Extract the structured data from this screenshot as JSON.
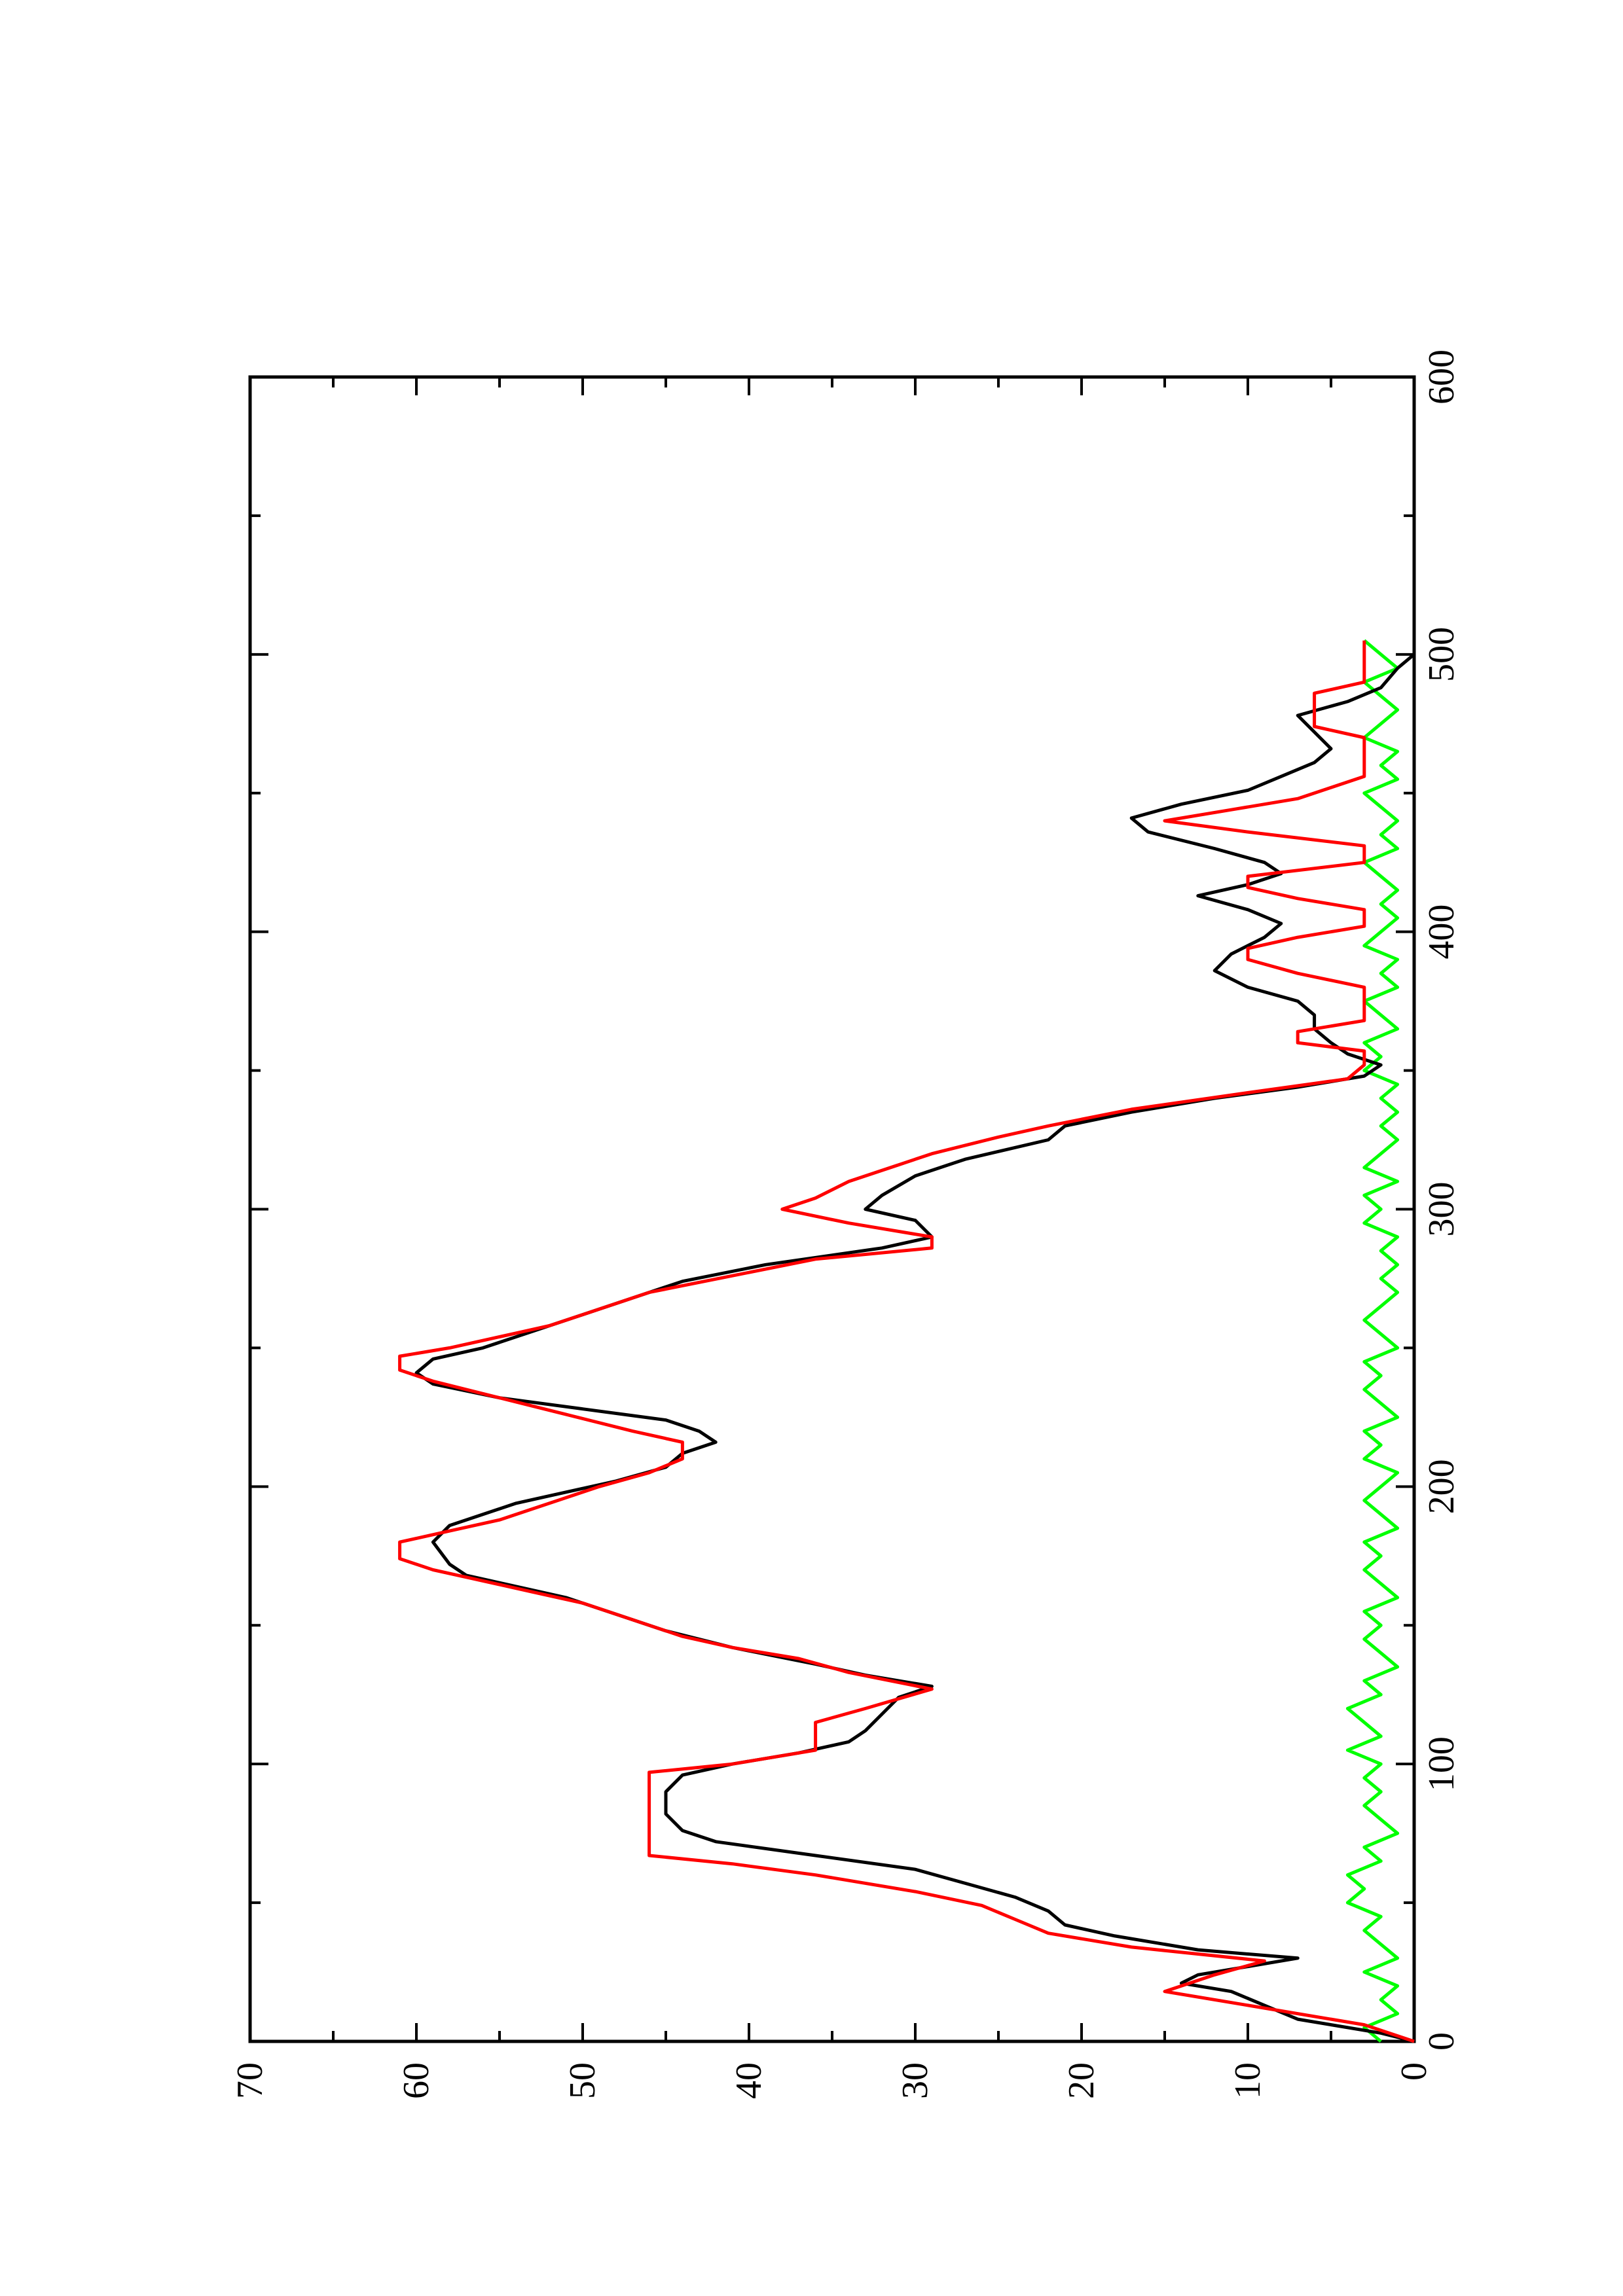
{
  "chart_data": {
    "type": "line",
    "orientation": "rotated-90-ccw",
    "title": "",
    "xlabel": "",
    "ylabel": "",
    "xlim": [
      0,
      600
    ],
    "ylim": [
      0,
      70
    ],
    "x_ticks": [
      0,
      100,
      200,
      300,
      400,
      500,
      600
    ],
    "y_ticks": [
      0,
      10,
      20,
      30,
      40,
      50,
      60,
      70
    ],
    "x_tick_labels": [
      "0",
      "100",
      "200",
      "300",
      "400",
      "500",
      "600"
    ],
    "y_tick_labels": [
      "0",
      "10",
      "20",
      "30",
      "40",
      "50",
      "60",
      "70"
    ],
    "grid": false,
    "legend": "none",
    "series": [
      {
        "color": "#000000",
        "points": [
          [
            0,
            0
          ],
          [
            3,
            2
          ],
          [
            8,
            7
          ],
          [
            13,
            9
          ],
          [
            18,
            11
          ],
          [
            21,
            14
          ],
          [
            24,
            13
          ],
          [
            27,
            10
          ],
          [
            30,
            7
          ],
          [
            33,
            13
          ],
          [
            38,
            18
          ],
          [
            42,
            21
          ],
          [
            47,
            22
          ],
          [
            52,
            24
          ],
          [
            57,
            27
          ],
          [
            62,
            30
          ],
          [
            67,
            36
          ],
          [
            72,
            42
          ],
          [
            76,
            44
          ],
          [
            82,
            45
          ],
          [
            90,
            45
          ],
          [
            96,
            44
          ],
          [
            100,
            41
          ],
          [
            104,
            37
          ],
          [
            108,
            34
          ],
          [
            112,
            33
          ],
          [
            118,
            32
          ],
          [
            124,
            31
          ],
          [
            128,
            29
          ],
          [
            132,
            33
          ],
          [
            136,
            36
          ],
          [
            142,
            41
          ],
          [
            148,
            45
          ],
          [
            154,
            48
          ],
          [
            160,
            51
          ],
          [
            164,
            54
          ],
          [
            168,
            57
          ],
          [
            172,
            58
          ],
          [
            180,
            59
          ],
          [
            186,
            58
          ],
          [
            190,
            56
          ],
          [
            194,
            54
          ],
          [
            198,
            51
          ],
          [
            202,
            48
          ],
          [
            207,
            45
          ],
          [
            212,
            44
          ],
          [
            216,
            42
          ],
          [
            220,
            43
          ],
          [
            224,
            45
          ],
          [
            228,
            50
          ],
          [
            232,
            55
          ],
          [
            237,
            59
          ],
          [
            241,
            60
          ],
          [
            246,
            59
          ],
          [
            250,
            56
          ],
          [
            256,
            53
          ],
          [
            262,
            50
          ],
          [
            268,
            47
          ],
          [
            274,
            44
          ],
          [
            280,
            39
          ],
          [
            286,
            32
          ],
          [
            290,
            29
          ],
          [
            296,
            30
          ],
          [
            300,
            33
          ],
          [
            305,
            32
          ],
          [
            312,
            30
          ],
          [
            318,
            27
          ],
          [
            325,
            22
          ],
          [
            330,
            21
          ],
          [
            335,
            17
          ],
          [
            340,
            12
          ],
          [
            344,
            7
          ],
          [
            348,
            3
          ],
          [
            352,
            2
          ],
          [
            356,
            4
          ],
          [
            360,
            5
          ],
          [
            365,
            6
          ],
          [
            370,
            6
          ],
          [
            375,
            7
          ],
          [
            380,
            10
          ],
          [
            386,
            12
          ],
          [
            392,
            11
          ],
          [
            398,
            9
          ],
          [
            403,
            8
          ],
          [
            408,
            10
          ],
          [
            413,
            13
          ],
          [
            417,
            10
          ],
          [
            421,
            8
          ],
          [
            425,
            9
          ],
          [
            430,
            12
          ],
          [
            436,
            16
          ],
          [
            441,
            17
          ],
          [
            446,
            14
          ],
          [
            451,
            10
          ],
          [
            456,
            8
          ],
          [
            461,
            6
          ],
          [
            466,
            5
          ],
          [
            472,
            6
          ],
          [
            478,
            7
          ],
          [
            483,
            4
          ],
          [
            488,
            2
          ],
          [
            495,
            1
          ],
          [
            500,
            0
          ],
          [
            505,
            0
          ]
        ]
      },
      {
        "color": "#ff0000",
        "points": [
          [
            0,
            0
          ],
          [
            6,
            3
          ],
          [
            12,
            9
          ],
          [
            18,
            15
          ],
          [
            24,
            12
          ],
          [
            29,
            9
          ],
          [
            34,
            17
          ],
          [
            39,
            22
          ],
          [
            44,
            24
          ],
          [
            49,
            26
          ],
          [
            54,
            30
          ],
          [
            60,
            36
          ],
          [
            64,
            41
          ],
          [
            67,
            46
          ],
          [
            97,
            46
          ],
          [
            100,
            41
          ],
          [
            105,
            36
          ],
          [
            115,
            36
          ],
          [
            120,
            33
          ],
          [
            127,
            29
          ],
          [
            133,
            34
          ],
          [
            138,
            37
          ],
          [
            142,
            41
          ],
          [
            146,
            44
          ],
          [
            150,
            46
          ],
          [
            154,
            48
          ],
          [
            158,
            50
          ],
          [
            162,
            53
          ],
          [
            166,
            56
          ],
          [
            170,
            59
          ],
          [
            174,
            61
          ],
          [
            180,
            61
          ],
          [
            184,
            58
          ],
          [
            188,
            55
          ],
          [
            192,
            53
          ],
          [
            196,
            51
          ],
          [
            200,
            49
          ],
          [
            205,
            46
          ],
          [
            210,
            44
          ],
          [
            216,
            44
          ],
          [
            220,
            47
          ],
          [
            226,
            51
          ],
          [
            232,
            55
          ],
          [
            238,
            59
          ],
          [
            242,
            61
          ],
          [
            247,
            61
          ],
          [
            250,
            58
          ],
          [
            254,
            55
          ],
          [
            258,
            52
          ],
          [
            262,
            50
          ],
          [
            266,
            48
          ],
          [
            270,
            46
          ],
          [
            276,
            41
          ],
          [
            282,
            36
          ],
          [
            286,
            29
          ],
          [
            290,
            29
          ],
          [
            295,
            34
          ],
          [
            300,
            38
          ],
          [
            304,
            36
          ],
          [
            310,
            34
          ],
          [
            316,
            31
          ],
          [
            320,
            29
          ],
          [
            326,
            25
          ],
          [
            330,
            22
          ],
          [
            336,
            17
          ],
          [
            342,
            10
          ],
          [
            347,
            4
          ],
          [
            352,
            3
          ],
          [
            357,
            3
          ],
          [
            360,
            7
          ],
          [
            364,
            7
          ],
          [
            368,
            3
          ],
          [
            380,
            3
          ],
          [
            385,
            7
          ],
          [
            390,
            10
          ],
          [
            394,
            10
          ],
          [
            398,
            7
          ],
          [
            402,
            3
          ],
          [
            408,
            3
          ],
          [
            412,
            7
          ],
          [
            416,
            10
          ],
          [
            420,
            10
          ],
          [
            425,
            3
          ],
          [
            431,
            3
          ],
          [
            436,
            10
          ],
          [
            440,
            15
          ],
          [
            444,
            11
          ],
          [
            448,
            7
          ],
          [
            452,
            5
          ],
          [
            456,
            3
          ],
          [
            470,
            3
          ],
          [
            474,
            6
          ],
          [
            478,
            6
          ],
          [
            486,
            6
          ],
          [
            490,
            3
          ],
          [
            505,
            3
          ]
        ]
      },
      {
        "color": "#00ff00",
        "points": [
          [
            0,
            2
          ],
          [
            5,
            3
          ],
          [
            10,
            1
          ],
          [
            15,
            2
          ],
          [
            20,
            1
          ],
          [
            25,
            3
          ],
          [
            30,
            1
          ],
          [
            35,
            2
          ],
          [
            40,
            3
          ],
          [
            45,
            2
          ],
          [
            50,
            4
          ],
          [
            55,
            3
          ],
          [
            60,
            4
          ],
          [
            65,
            2
          ],
          [
            70,
            3
          ],
          [
            75,
            1
          ],
          [
            80,
            2
          ],
          [
            85,
            3
          ],
          [
            90,
            2
          ],
          [
            95,
            3
          ],
          [
            100,
            2
          ],
          [
            105,
            4
          ],
          [
            110,
            2
          ],
          [
            115,
            3
          ],
          [
            120,
            4
          ],
          [
            125,
            2
          ],
          [
            130,
            3
          ],
          [
            135,
            1
          ],
          [
            140,
            2
          ],
          [
            145,
            3
          ],
          [
            150,
            2
          ],
          [
            155,
            3
          ],
          [
            160,
            1
          ],
          [
            165,
            2
          ],
          [
            170,
            3
          ],
          [
            175,
            2
          ],
          [
            180,
            3
          ],
          [
            185,
            1
          ],
          [
            190,
            2
          ],
          [
            195,
            3
          ],
          [
            200,
            2
          ],
          [
            205,
            1
          ],
          [
            210,
            3
          ],
          [
            215,
            2
          ],
          [
            220,
            3
          ],
          [
            225,
            1
          ],
          [
            230,
            2
          ],
          [
            235,
            3
          ],
          [
            240,
            2
          ],
          [
            245,
            3
          ],
          [
            250,
            1
          ],
          [
            255,
            2
          ],
          [
            260,
            3
          ],
          [
            265,
            2
          ],
          [
            270,
            1
          ],
          [
            275,
            2
          ],
          [
            280,
            1
          ],
          [
            285,
            2
          ],
          [
            290,
            1
          ],
          [
            295,
            3
          ],
          [
            300,
            2
          ],
          [
            305,
            3
          ],
          [
            310,
            1
          ],
          [
            315,
            3
          ],
          [
            320,
            2
          ],
          [
            325,
            1
          ],
          [
            330,
            2
          ],
          [
            335,
            1
          ],
          [
            340,
            2
          ],
          [
            345,
            1
          ],
          [
            350,
            3
          ],
          [
            355,
            2
          ],
          [
            360,
            3
          ],
          [
            365,
            1
          ],
          [
            370,
            2
          ],
          [
            375,
            3
          ],
          [
            380,
            1
          ],
          [
            385,
            2
          ],
          [
            390,
            1
          ],
          [
            395,
            3
          ],
          [
            400,
            2
          ],
          [
            405,
            1
          ],
          [
            410,
            2
          ],
          [
            415,
            1
          ],
          [
            420,
            2
          ],
          [
            425,
            3
          ],
          [
            430,
            1
          ],
          [
            435,
            2
          ],
          [
            440,
            1
          ],
          [
            445,
            2
          ],
          [
            450,
            3
          ],
          [
            455,
            1
          ],
          [
            460,
            2
          ],
          [
            465,
            1
          ],
          [
            470,
            3
          ],
          [
            475,
            2
          ],
          [
            480,
            1
          ],
          [
            485,
            2
          ],
          [
            490,
            3
          ],
          [
            495,
            1
          ],
          [
            500,
            2
          ],
          [
            505,
            3
          ]
        ]
      }
    ]
  }
}
